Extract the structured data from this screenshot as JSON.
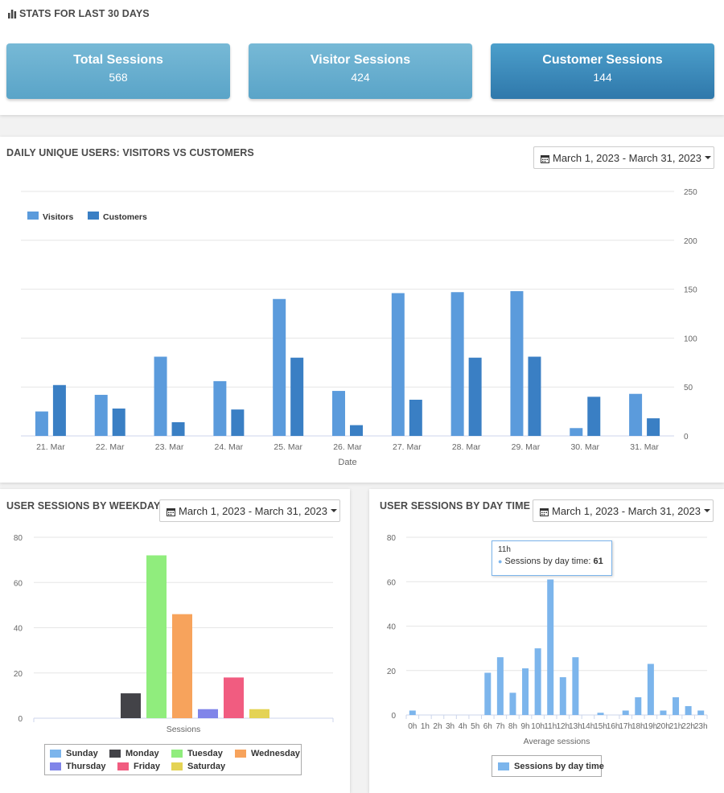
{
  "header": {
    "title": "STATS FOR LAST 30 DAYS",
    "icon": "bar-chart-icon"
  },
  "stats": [
    {
      "label": "Total Sessions",
      "value": "568"
    },
    {
      "label": "Visitor Sessions",
      "value": "424"
    },
    {
      "label": "Customer Sessions",
      "value": "144"
    }
  ],
  "colors": {
    "card_light": "#6aaed0",
    "card_dark": "#3d8cbf",
    "visitors": "#5b9bdc",
    "customers": "#3a7fc4",
    "sessions": "#7cb5ec",
    "accent_border": "#7cb5ec"
  },
  "daily": {
    "title": "DAILY UNIQUE USERS: VISITORS VS CUSTOMERS",
    "date_range": "March 1, 2023 - March 31, 2023"
  },
  "weekday": {
    "title": "USER SESSIONS BY WEEKDAY",
    "date_range": "March 1, 2023 - March 31, 2023"
  },
  "daytime": {
    "title": "USER SESSIONS BY DAY TIME",
    "date_range": "March 1, 2023 - March 31, 2023",
    "tooltip": {
      "header": "11h",
      "series": "Sessions by day time",
      "value": "61"
    }
  },
  "chart_data": [
    {
      "type": "bar",
      "xlabel": "Date",
      "ylabel": "",
      "ylim": [
        0,
        250
      ],
      "yticks": [
        0,
        50,
        100,
        150,
        200,
        250
      ],
      "grid": true,
      "legend_position": "top-left",
      "categories": [
        "21. Mar",
        "22. Mar",
        "23. Mar",
        "24. Mar",
        "25. Mar",
        "26. Mar",
        "27. Mar",
        "28. Mar",
        "29. Mar",
        "30. Mar",
        "31. Mar"
      ],
      "series": [
        {
          "name": "Visitors",
          "color": "#5b9bdc",
          "values": [
            25,
            42,
            81,
            56,
            140,
            46,
            146,
            147,
            148,
            8,
            43
          ]
        },
        {
          "name": "Customers",
          "color": "#3a7fc4",
          "values": [
            52,
            28,
            14,
            27,
            80,
            11,
            37,
            80,
            81,
            40,
            18
          ]
        }
      ]
    },
    {
      "type": "bar",
      "xlabel": "Sessions",
      "ylim": [
        0,
        80
      ],
      "yticks": [
        0,
        20,
        40,
        60,
        80
      ],
      "grid": true,
      "legend_position": "bottom",
      "categories": [
        "Sunday",
        "Monday",
        "Tuesday",
        "Wednesday",
        "Thursday",
        "Friday",
        "Saturday"
      ],
      "colors": [
        "#7cb5ec",
        "#434348",
        "#90ed7d",
        "#f7a35c",
        "#8085e9",
        "#f15c80",
        "#e4d354"
      ],
      "values": [
        0,
        11,
        72,
        46,
        4,
        18,
        4
      ]
    },
    {
      "type": "bar",
      "xlabel": "Average sessions",
      "ylim": [
        0,
        80
      ],
      "yticks": [
        0,
        20,
        40,
        60,
        80
      ],
      "grid": true,
      "legend_position": "bottom",
      "series_name": "Sessions by day time",
      "categories": [
        "0h",
        "1h",
        "2h",
        "3h",
        "4h",
        "5h",
        "6h",
        "7h",
        "8h",
        "9h",
        "10h",
        "11h",
        "12h",
        "13h",
        "14h",
        "15h",
        "16h",
        "17h",
        "18h",
        "19h",
        "20h",
        "21h",
        "22h",
        "23h"
      ],
      "values": [
        2,
        0,
        0,
        0,
        0,
        0,
        19,
        26,
        10,
        21,
        30,
        61,
        17,
        26,
        0,
        1,
        0,
        2,
        8,
        23,
        2,
        8,
        4,
        2
      ]
    }
  ]
}
